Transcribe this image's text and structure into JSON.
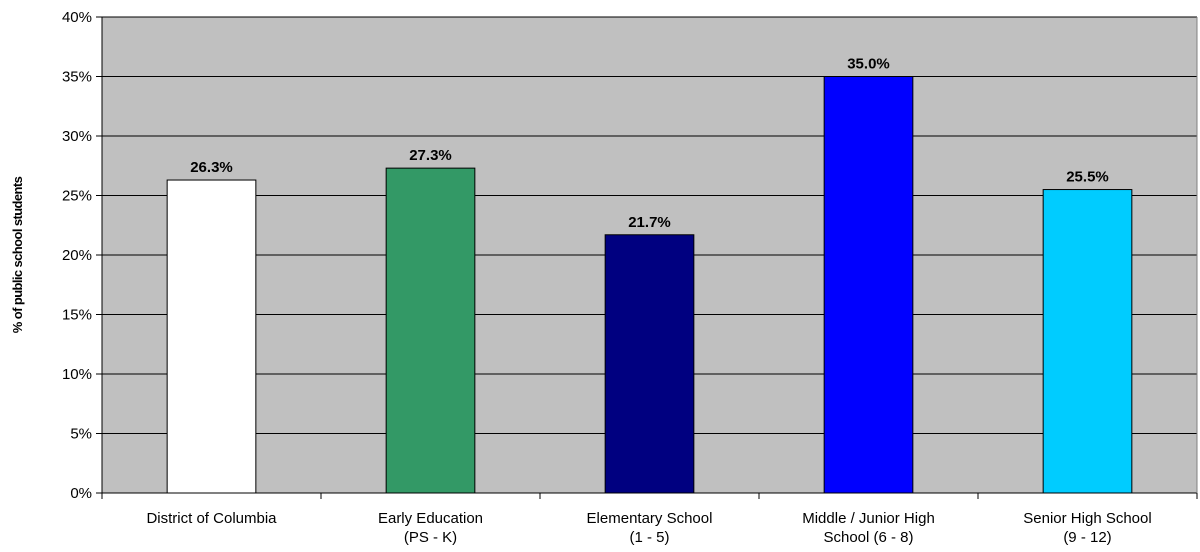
{
  "chart_data": {
    "type": "bar",
    "categories": [
      [
        "District of Columbia"
      ],
      [
        "Early Education",
        "(PS - K)"
      ],
      [
        "Elementary School",
        "(1 - 5)"
      ],
      [
        "Middle / Junior High",
        "School (6 - 8)"
      ],
      [
        "Senior High School",
        "(9 - 12)"
      ]
    ],
    "values": [
      26.3,
      27.3,
      21.7,
      35.0,
      25.5
    ],
    "data_labels": [
      "26.3%",
      "27.3%",
      "21.7%",
      "35.0%",
      "25.5%"
    ],
    "colors": [
      "#ffffff",
      "#339966",
      "#000080",
      "#0000ff",
      "#00ccff"
    ],
    "title": "",
    "xlabel": "",
    "ylabel": "% of public school students",
    "ylim": [
      0,
      40
    ],
    "yticks": [
      0,
      5,
      10,
      15,
      20,
      25,
      30,
      35,
      40
    ],
    "ytick_labels": [
      "0%",
      "5%",
      "10%",
      "15%",
      "20%",
      "25%",
      "30%",
      "35%",
      "40%"
    ],
    "grid": true,
    "plot_background": "#c0c0c0",
    "legend": "none"
  }
}
